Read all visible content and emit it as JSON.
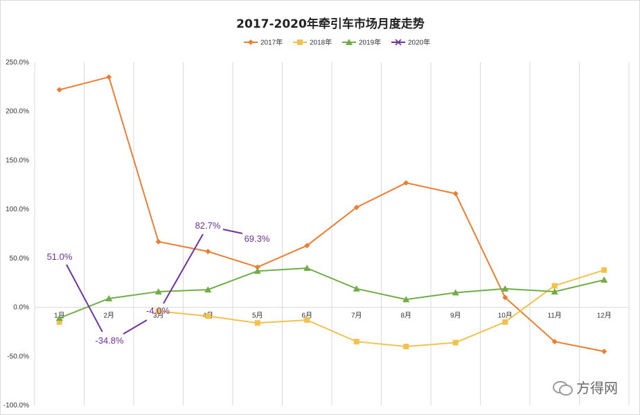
{
  "chart_data": {
    "type": "line",
    "title": "2017-2020年牵引车市场月度走势",
    "categories": [
      "1月",
      "2月",
      "3月",
      "4月",
      "5月",
      "6月",
      "7月",
      "8月",
      "9月",
      "10月",
      "11月",
      "12月"
    ],
    "ylim": [
      -100,
      250
    ],
    "yticks": [
      -100,
      -50,
      0,
      50,
      100,
      150,
      200,
      250
    ],
    "ytick_labels": [
      "-100.0%",
      "-50.0%",
      "0.0%",
      "50.0%",
      "100.0%",
      "150.0%",
      "200.0%",
      "250.0%"
    ],
    "grid": "vertical",
    "legend_position": "top",
    "series": [
      {
        "name": "2017年",
        "color": "#ed7d31",
        "marker": "diamond",
        "values": [
          222,
          235,
          67,
          57,
          41,
          63,
          102,
          127,
          116,
          10,
          -35,
          -45
        ]
      },
      {
        "name": "2018年",
        "color": "#f2c14e",
        "marker": "square",
        "values": [
          -15,
          null,
          -4,
          -9,
          -16,
          -13,
          -35,
          -40,
          -36,
          -15,
          22,
          38
        ]
      },
      {
        "name": "2019年",
        "color": "#70ad47",
        "marker": "triangle",
        "values": [
          -11,
          9,
          16,
          18,
          37,
          40,
          19,
          8,
          15,
          19,
          16,
          28
        ]
      },
      {
        "name": "2020年",
        "color": "#7030a0",
        "marker": "x",
        "values": [
          51,
          -34.8,
          -4,
          82.7,
          69.3,
          null,
          null,
          null,
          null,
          null,
          null,
          null
        ]
      }
    ],
    "annotations": [
      "51.0%",
      "-34.8%",
      "-4.0%",
      "82.7%",
      "69.3%"
    ]
  },
  "watermark": {
    "text": "方得网",
    "icon": "wechat-icon"
  }
}
